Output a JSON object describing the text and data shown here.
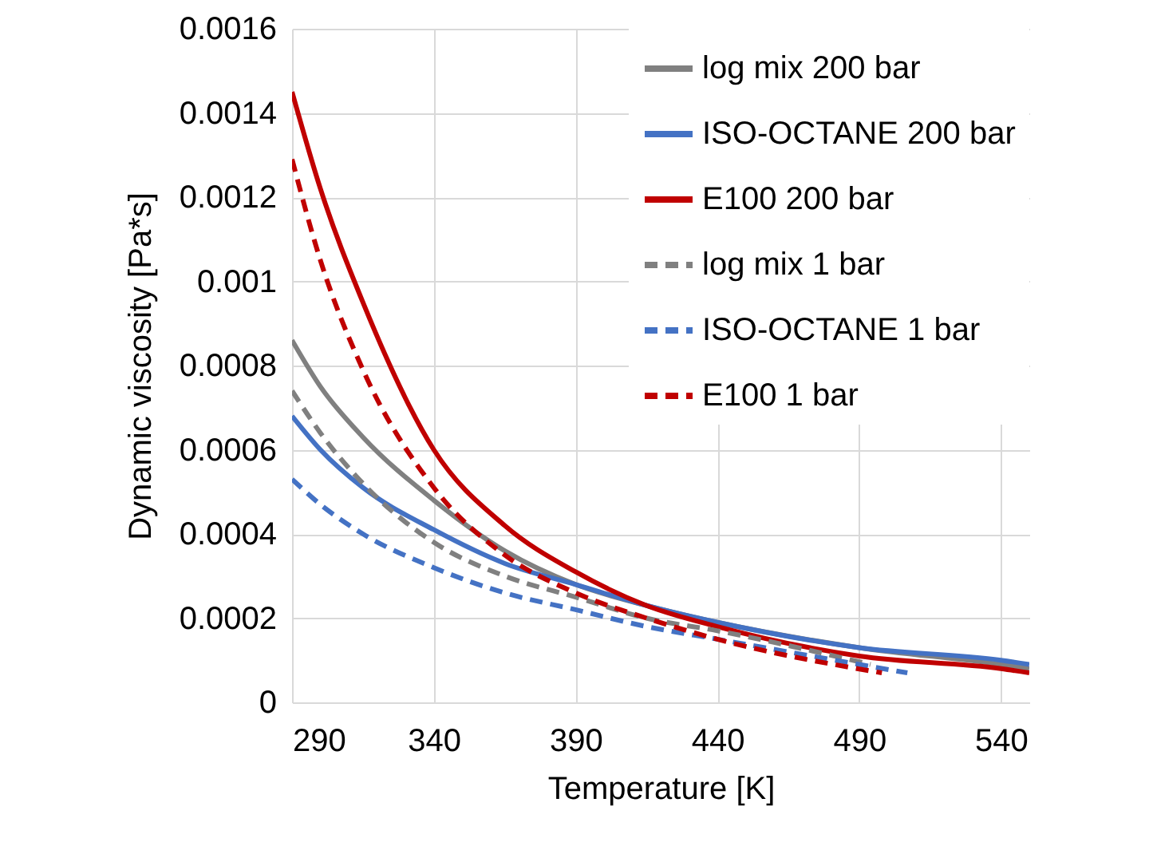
{
  "chart_data": {
    "type": "line",
    "xlabel": "Temperature [K]",
    "ylabel": "Dynamic viscosity [Pa*s]",
    "xlim": [
      290,
      550
    ],
    "xticks": [
      290,
      340,
      390,
      440,
      490,
      540
    ],
    "ylim": [
      0,
      0.0016
    ],
    "yticks": [
      0,
      0.0002,
      0.0004,
      0.0006,
      0.0008,
      0.001,
      0.0012,
      0.0014,
      0.0016
    ],
    "grid": true,
    "legend": "top right",
    "marker": "none",
    "series": [
      {
        "name": "log mix 200 bar",
        "color": "#808080",
        "line_style": "solid",
        "x": [
          290,
          300,
          315,
          340,
          365,
          390,
          415,
          440,
          490,
          540,
          550
        ],
        "values": [
          0.00086,
          0.00075,
          0.00063,
          0.00048,
          0.00036,
          0.00028,
          0.00023,
          0.00019,
          0.00013,
          9e-05,
          8e-05
        ]
      },
      {
        "name": "ISO-OCTANE 200 bar",
        "color": "#4472c4",
        "line_style": "solid",
        "x": [
          290,
          300,
          315,
          340,
          365,
          390,
          415,
          440,
          490,
          540,
          550
        ],
        "values": [
          0.00068,
          0.0006,
          0.00051,
          0.00041,
          0.00033,
          0.00028,
          0.00023,
          0.00019,
          0.00013,
          0.0001,
          9e-05
        ]
      },
      {
        "name": "E100 200 bar",
        "color": "#c00000",
        "line_style": "solid",
        "x": [
          290,
          300,
          315,
          340,
          365,
          390,
          415,
          440,
          490,
          540,
          550
        ],
        "values": [
          0.00145,
          0.00122,
          0.00095,
          0.0006,
          0.00042,
          0.00031,
          0.00023,
          0.00018,
          0.00011,
          8e-05,
          7e-05
        ]
      },
      {
        "name": "log mix 1 bar",
        "color": "#808080",
        "line_style": "dashed",
        "x": [
          290,
          300,
          315,
          340,
          365,
          390,
          415,
          440,
          494
        ],
        "values": [
          0.00074,
          0.00064,
          0.00052,
          0.00038,
          0.0003,
          0.00025,
          0.0002,
          0.00017,
          9e-05
        ]
      },
      {
        "name": "ISO-OCTANE 1 bar",
        "color": "#4472c4",
        "line_style": "dashed",
        "x": [
          290,
          300,
          315,
          340,
          365,
          390,
          415,
          440,
          490,
          507
        ],
        "values": [
          0.00053,
          0.00047,
          0.0004,
          0.00032,
          0.00026,
          0.00022,
          0.00018,
          0.00015,
          9e-05,
          7e-05
        ]
      },
      {
        "name": "E100 1 bar",
        "color": "#c00000",
        "line_style": "dashed",
        "x": [
          290,
          300,
          315,
          340,
          365,
          390,
          415,
          440,
          498
        ],
        "values": [
          0.00129,
          0.00105,
          0.00079,
          0.00051,
          0.00035,
          0.00026,
          0.0002,
          0.00015,
          7e-05
        ]
      }
    ]
  }
}
